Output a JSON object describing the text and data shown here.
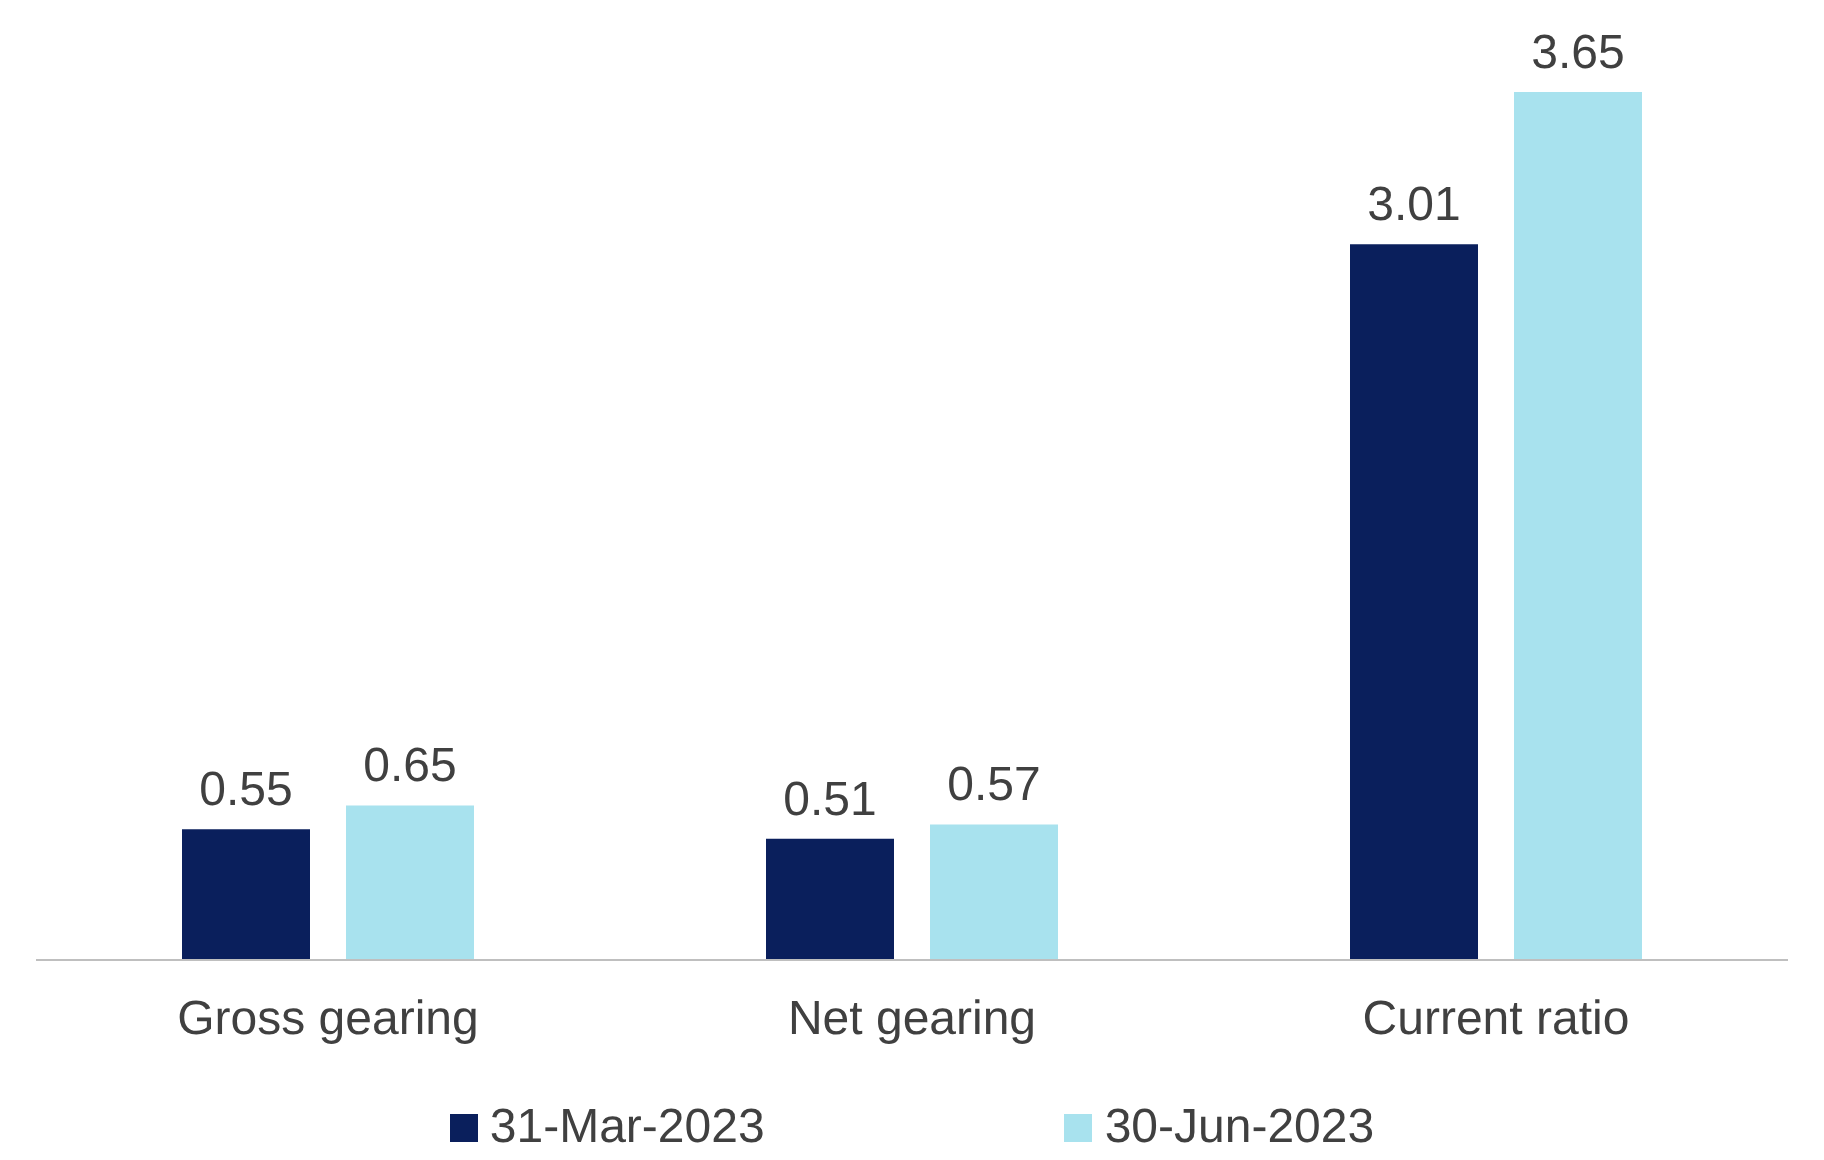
{
  "chart_data": {
    "type": "bar",
    "categories": [
      "Gross gearing",
      "Net gearing",
      "Current ratio"
    ],
    "series": [
      {
        "name": "31-Mar-2023",
        "color": "#0a1f5c",
        "values": [
          0.55,
          0.51,
          3.01
        ]
      },
      {
        "name": "30-Jun-2023",
        "color": "#a8e2ee",
        "values": [
          0.65,
          0.57,
          3.65
        ]
      }
    ],
    "tick_labels": "x",
    "data_labels": true,
    "grid": false,
    "legend": "bottom"
  }
}
